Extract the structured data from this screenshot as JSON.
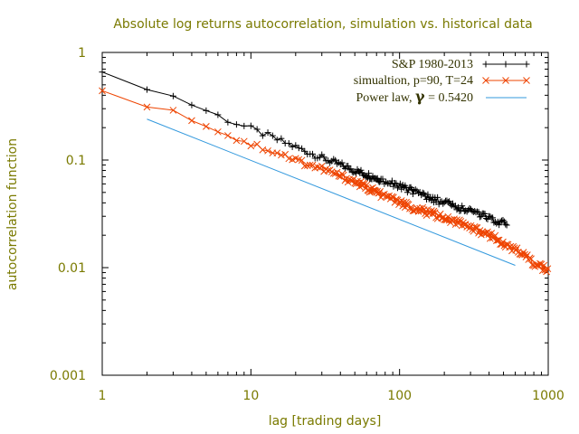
{
  "chart_data": {
    "type": "line",
    "title": "Absolute log returns autocorrelation, simulation vs. historical data",
    "xlabel": "lag [trading days]",
    "ylabel": "autocorrelation function",
    "xscale": "log",
    "yscale": "log",
    "xlim": [
      1,
      1000
    ],
    "ylim": [
      0.001,
      1
    ],
    "xticks": [
      "1",
      "10",
      "100",
      "1000"
    ],
    "yticks": [
      "1",
      "0.1",
      "0.01",
      "0.001"
    ],
    "legend_position": "top-right",
    "series": [
      {
        "name": "S&P 1980-2013",
        "color": "#000000",
        "marker": "plus",
        "x": [
          1,
          2,
          3,
          5,
          7,
          10,
          15,
          20,
          30,
          50,
          70,
          100,
          150,
          200,
          300,
          400,
          530
        ],
        "y": [
          0.62,
          0.48,
          0.39,
          0.29,
          0.235,
          0.195,
          0.155,
          0.132,
          0.105,
          0.08,
          0.068,
          0.057,
          0.046,
          0.04,
          0.033,
          0.029,
          0.025
        ]
      },
      {
        "name": "simualtion, p=90, T=24",
        "name_parts": [
          "simualtion, p=90, T=24"
        ],
        "color": "#ee4400",
        "marker": "x",
        "x": [
          1,
          2,
          3,
          4,
          5,
          7,
          10,
          15,
          20,
          30,
          50,
          70,
          100,
          150,
          200,
          300,
          400,
          500,
          700,
          800,
          1000
        ],
        "y": [
          0.46,
          0.33,
          0.28,
          0.24,
          0.215,
          0.17,
          0.14,
          0.118,
          0.1,
          0.083,
          0.063,
          0.05,
          0.04,
          0.033,
          0.029,
          0.024,
          0.02,
          0.017,
          0.013,
          0.011,
          0.0095
        ]
      },
      {
        "name_prefix": "Power law, ",
        "name_symbol": "γ",
        "name_suffix": " =  0.5420",
        "color": "#3399dd",
        "marker": "none",
        "gamma": 0.542,
        "x": [
          2,
          600
        ],
        "y": [
          0.24,
          0.0105
        ]
      }
    ]
  }
}
